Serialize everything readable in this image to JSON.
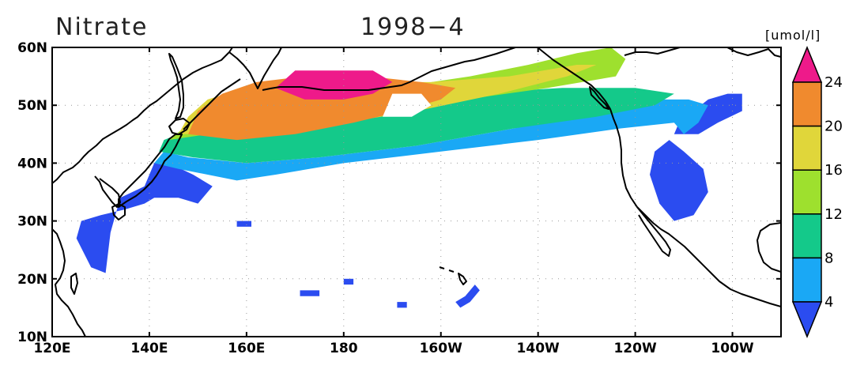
{
  "title": {
    "variable": "Nitrate",
    "date": "1998−4"
  },
  "units": "[umol/l]",
  "map": {
    "lon_range": [
      120,
      270
    ],
    "lat_range": [
      10,
      60
    ],
    "lat_ticks": [
      {
        "value": 10,
        "label": "10N"
      },
      {
        "value": 20,
        "label": "20N"
      },
      {
        "value": 30,
        "label": "30N"
      },
      {
        "value": 40,
        "label": "40N"
      },
      {
        "value": 50,
        "label": "50N"
      },
      {
        "value": 60,
        "label": "60N"
      }
    ],
    "lon_ticks": [
      {
        "value": 120,
        "label": "120E"
      },
      {
        "value": 140,
        "label": "140E"
      },
      {
        "value": 160,
        "label": "160E"
      },
      {
        "value": 180,
        "label": "180"
      },
      {
        "value": 200,
        "label": "160W"
      },
      {
        "value": 220,
        "label": "140W"
      },
      {
        "value": 240,
        "label": "120W"
      },
      {
        "value": 260,
        "label": "100W"
      }
    ]
  },
  "colorbar": {
    "labels": [
      "4",
      "8",
      "12",
      "16",
      "20",
      "24"
    ],
    "colors": [
      "#2b4cf0",
      "#1aa8f5",
      "#14c98a",
      "#9ee02e",
      "#e0d63a",
      "#f08a2e",
      "#ee1a8a"
    ]
  },
  "field": {
    "level_bounds": [
      4,
      8,
      12,
      16,
      20,
      24
    ],
    "regions": [
      {
        "level": 1,
        "polygon": [
          [
            128,
            22
          ],
          [
            125,
            27
          ],
          [
            126,
            30
          ],
          [
            130,
            31
          ],
          [
            135,
            32
          ],
          [
            139,
            33
          ],
          [
            141,
            34
          ],
          [
            146,
            34
          ],
          [
            150,
            33
          ],
          [
            153,
            36
          ],
          [
            149,
            38
          ],
          [
            144,
            40
          ],
          [
            141,
            40
          ],
          [
            139,
            36
          ],
          [
            134,
            34
          ],
          [
            132,
            28
          ],
          [
            131,
            21
          ]
        ]
      },
      {
        "level": 1,
        "polygon": [
          [
            243,
            38
          ],
          [
            245,
            33
          ],
          [
            248,
            30
          ],
          [
            252,
            31
          ],
          [
            255,
            35
          ],
          [
            254,
            39
          ],
          [
            250,
            42
          ],
          [
            247,
            44
          ],
          [
            244,
            42
          ]
        ]
      },
      {
        "level": 1,
        "polygon": [
          [
            253,
            45
          ],
          [
            257,
            47
          ],
          [
            262,
            49
          ],
          [
            262,
            52
          ],
          [
            259,
            52
          ],
          [
            255,
            51
          ],
          [
            252,
            49
          ],
          [
            249,
            47
          ],
          [
            248,
            45
          ]
        ]
      },
      {
        "level": 1,
        "polygon": [
          [
            171,
            17
          ],
          [
            175,
            17
          ],
          [
            175,
            18
          ],
          [
            171,
            18
          ]
        ]
      },
      {
        "level": 1,
        "polygon": [
          [
            180,
            19
          ],
          [
            182,
            19
          ],
          [
            182,
            20
          ],
          [
            180,
            20
          ]
        ]
      },
      {
        "level": 1,
        "polygon": [
          [
            191,
            15
          ],
          [
            193,
            15
          ],
          [
            193,
            16
          ],
          [
            191,
            16
          ]
        ]
      },
      {
        "level": 1,
        "polygon": [
          [
            204,
            15
          ],
          [
            206,
            16
          ],
          [
            208,
            18
          ],
          [
            207,
            19
          ],
          [
            205,
            17
          ],
          [
            203,
            16
          ]
        ]
      },
      {
        "level": 1,
        "polygon": [
          [
            158,
            29
          ],
          [
            161,
            29
          ],
          [
            161,
            30
          ],
          [
            158,
            30
          ]
        ]
      },
      {
        "level": 2,
        "polygon": [
          [
            141,
            40
          ],
          [
            146,
            39
          ],
          [
            152,
            38
          ],
          [
            158,
            37
          ],
          [
            166,
            38
          ],
          [
            180,
            40
          ],
          [
            200,
            42
          ],
          [
            220,
            44
          ],
          [
            237,
            46
          ],
          [
            248,
            47
          ],
          [
            250,
            45
          ],
          [
            253,
            47
          ],
          [
            255,
            50
          ],
          [
            251,
            51
          ],
          [
            244,
            51
          ],
          [
            233,
            49
          ],
          [
            215,
            46
          ],
          [
            195,
            43
          ],
          [
            175,
            41
          ],
          [
            160,
            40
          ],
          [
            148,
            41
          ],
          [
            143,
            42
          ]
        ]
      },
      {
        "level": 3,
        "polygon": [
          [
            142,
            42
          ],
          [
            149,
            41
          ],
          [
            160,
            40
          ],
          [
            175,
            41
          ],
          [
            195,
            43
          ],
          [
            215,
            46
          ],
          [
            232,
            48
          ],
          [
            244,
            50
          ],
          [
            248,
            52
          ],
          [
            240,
            53
          ],
          [
            225,
            53
          ],
          [
            205,
            52
          ],
          [
            185,
            49
          ],
          [
            165,
            46
          ],
          [
            152,
            46
          ],
          [
            146,
            45
          ],
          [
            143,
            44
          ]
        ]
      },
      {
        "level": 4,
        "polygon": [
          [
            144,
            44
          ],
          [
            152,
            45
          ],
          [
            165,
            46
          ],
          [
            185,
            48
          ],
          [
            205,
            51
          ],
          [
            222,
            53
          ],
          [
            236,
            55
          ],
          [
            238,
            58
          ],
          [
            235,
            60
          ],
          [
            228,
            59
          ],
          [
            218,
            57
          ],
          [
            206,
            55
          ],
          [
            190,
            53
          ],
          [
            172,
            52
          ],
          [
            158,
            50
          ],
          [
            150,
            48
          ]
        ]
      },
      {
        "level": 5,
        "polygon": [
          [
            146,
            45
          ],
          [
            155,
            45
          ],
          [
            168,
            46
          ],
          [
            180,
            47
          ],
          [
            195,
            49
          ],
          [
            212,
            52
          ],
          [
            226,
            55
          ],
          [
            232,
            57
          ],
          [
            228,
            57
          ],
          [
            214,
            55
          ],
          [
            198,
            54
          ],
          [
            184,
            54
          ],
          [
            170,
            54
          ],
          [
            160,
            53
          ],
          [
            152,
            51
          ],
          [
            148,
            48
          ]
        ]
      },
      {
        "level": 6,
        "polygon": [
          [
            148,
            45
          ],
          [
            158,
            44
          ],
          [
            170,
            45
          ],
          [
            182,
            47
          ],
          [
            192,
            49
          ],
          [
            200,
            51
          ],
          [
            203,
            53
          ],
          [
            196,
            54
          ],
          [
            185,
            55
          ],
          [
            172,
            55
          ],
          [
            162,
            54
          ],
          [
            155,
            52
          ],
          [
            150,
            49
          ]
        ]
      },
      {
        "level": 7,
        "polygon": [
          [
            166,
            53
          ],
          [
            172,
            51
          ],
          [
            180,
            51
          ],
          [
            186,
            52
          ],
          [
            190,
            54
          ],
          [
            186,
            56
          ],
          [
            178,
            56
          ],
          [
            170,
            56
          ]
        ]
      }
    ],
    "masks": [
      {
        "polygon": [
          [
            188,
            48
          ],
          [
            194,
            48
          ],
          [
            198,
            50
          ],
          [
            196,
            52
          ],
          [
            190,
            52
          ]
        ]
      }
    ]
  }
}
